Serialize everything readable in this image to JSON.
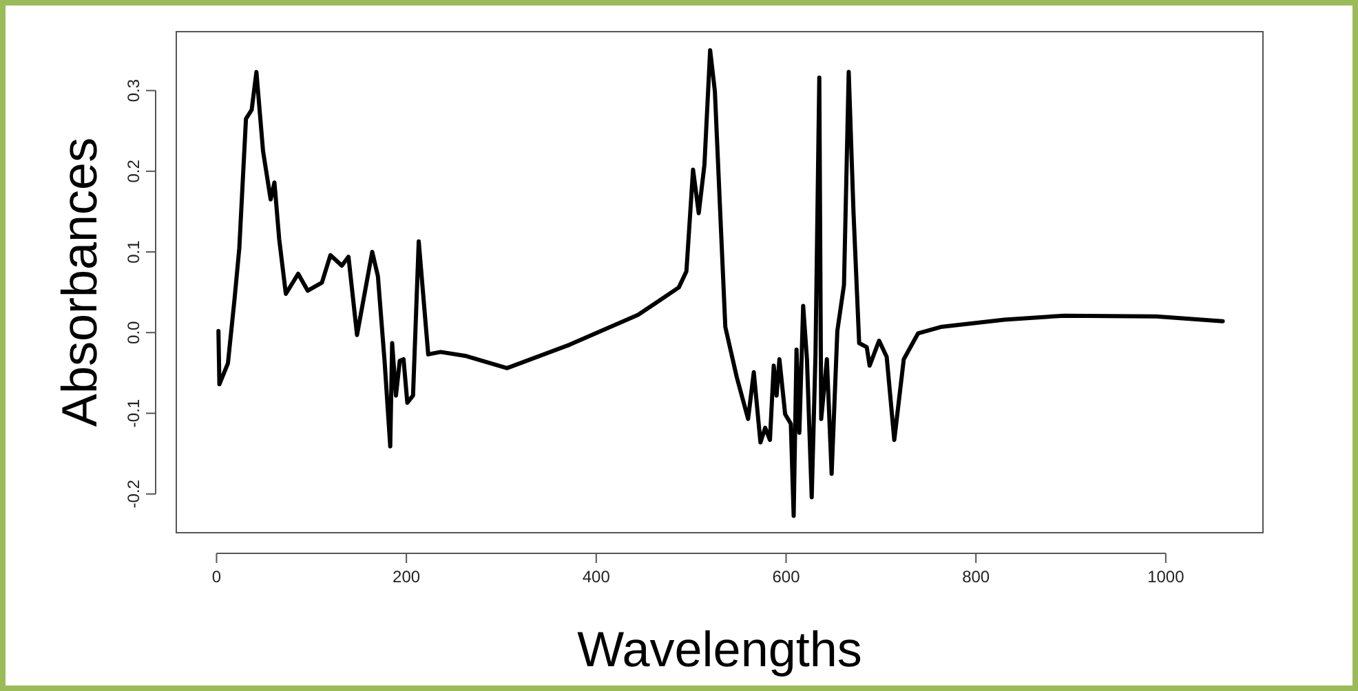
{
  "chart_data": {
    "type": "line",
    "xlabel": "Wavelengths",
    "ylabel": "Absorbances",
    "xlim": [
      -42.4,
      1102.4
    ],
    "ylim": [
      -0.248,
      0.373
    ],
    "xticks": [
      0,
      200,
      400,
      600,
      800,
      1000
    ],
    "yticks": [
      -0.2,
      -0.1,
      {
        "value": 0,
        "label": "0.0"
      },
      0.1,
      0.2,
      0.3
    ],
    "marker": "none",
    "line_style": "solid",
    "series": [
      {
        "color": "#000000",
        "x": [
          2,
          3,
          12,
          19,
          24,
          31,
          37,
          42,
          49,
          57,
          61,
          66,
          73,
          86,
          96,
          111,
          120,
          132,
          139,
          148,
          164,
          170,
          177,
          183,
          185,
          189,
          193,
          197,
          201,
          207,
          213,
          223,
          236,
          263,
          306,
          372,
          444,
          463,
          487,
          495,
          502,
          508,
          514,
          520,
          525,
          531,
          536,
          548,
          560,
          566,
          573,
          578,
          583,
          587,
          590,
          593,
          599,
          605,
          608,
          611,
          614,
          618,
          622,
          627,
          631,
          635,
          637,
          643,
          648,
          654,
          661,
          666,
          671,
          677,
          685,
          688,
          698,
          706,
          714,
          724,
          739,
          763,
          830,
          893,
          990,
          1060
        ],
        "values": [
          0.002,
          -0.064,
          -0.038,
          0.042,
          0.105,
          0.265,
          0.276,
          0.323,
          0.225,
          0.165,
          0.186,
          0.116,
          0.048,
          0.073,
          0.052,
          0.062,
          0.096,
          0.083,
          0.094,
          -0.003,
          0.1,
          0.07,
          -0.035,
          -0.141,
          -0.013,
          -0.078,
          -0.035,
          -0.033,
          -0.087,
          -0.078,
          0.113,
          -0.027,
          -0.024,
          -0.029,
          -0.044,
          -0.015,
          0.022,
          0.037,
          0.056,
          0.076,
          0.202,
          0.148,
          0.208,
          0.35,
          0.299,
          0.139,
          0.007,
          -0.055,
          -0.107,
          -0.049,
          -0.136,
          -0.118,
          -0.133,
          -0.041,
          -0.078,
          -0.033,
          -0.101,
          -0.113,
          -0.227,
          -0.021,
          -0.124,
          0.033,
          -0.033,
          -0.204,
          -0.027,
          0.316,
          -0.107,
          -0.033,
          -0.175,
          0.002,
          0.059,
          0.323,
          0.15,
          -0.013,
          -0.018,
          -0.041,
          -0.01,
          -0.03,
          -0.133,
          -0.033,
          -0.001,
          0.007,
          0.016,
          0.021,
          0.02,
          0.014
        ]
      }
    ]
  }
}
